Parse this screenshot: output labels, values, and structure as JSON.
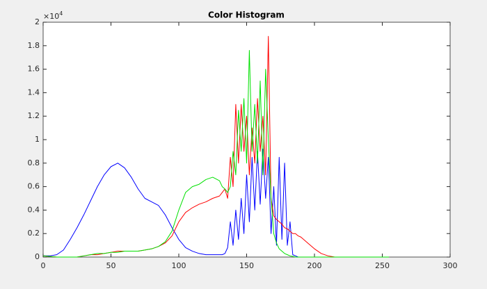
{
  "chart_data": {
    "type": "line",
    "title": "Color Histogram",
    "y_multiplier": {
      "base": "×10",
      "power": "4"
    },
    "x": [
      0,
      5,
      10,
      15,
      20,
      25,
      30,
      35,
      40,
      45,
      50,
      55,
      60,
      65,
      70,
      75,
      80,
      85,
      90,
      95,
      100,
      105,
      110,
      115,
      120,
      125,
      130,
      132,
      134,
      136,
      138,
      140,
      142,
      144,
      146,
      148,
      150,
      152,
      154,
      156,
      158,
      160,
      162,
      164,
      166,
      168,
      170,
      172,
      174,
      176,
      178,
      180,
      182,
      184,
      186,
      188,
      190,
      195,
      200,
      205,
      210,
      215,
      220,
      225,
      230,
      235,
      240,
      245,
      250,
      255
    ],
    "series": [
      {
        "color": "#0000ff",
        "values": [
          0.01,
          0.01,
          0.02,
          0.06,
          0.15,
          0.25,
          0.36,
          0.48,
          0.6,
          0.7,
          0.77,
          0.8,
          0.76,
          0.68,
          0.58,
          0.5,
          0.47,
          0.44,
          0.36,
          0.25,
          0.15,
          0.08,
          0.05,
          0.03,
          0.02,
          0.02,
          0.02,
          0.02,
          0.03,
          0.08,
          0.3,
          0.1,
          0.4,
          0.15,
          0.5,
          0.2,
          0.7,
          0.3,
          0.85,
          0.4,
          0.9,
          0.45,
          0.92,
          0.5,
          0.85,
          0.2,
          0.6,
          0.1,
          0.85,
          0.15,
          0.8,
          0.1,
          0.3,
          0.02,
          0.01,
          0,
          0,
          0,
          0,
          0,
          0,
          0,
          0,
          0,
          0,
          0,
          0,
          0,
          0,
          0
        ]
      },
      {
        "color": "#ff0000",
        "values": [
          0.01,
          0.005,
          0,
          0,
          0,
          0,
          0.01,
          0.02,
          0.02,
          0.03,
          0.04,
          0.05,
          0.05,
          0.05,
          0.05,
          0.06,
          0.07,
          0.09,
          0.12,
          0.18,
          0.3,
          0.38,
          0.42,
          0.45,
          0.47,
          0.5,
          0.52,
          0.55,
          0.58,
          0.5,
          0.85,
          0.6,
          1.3,
          0.8,
          1.3,
          0.9,
          1.2,
          0.7,
          1.1,
          0.8,
          1.35,
          0.9,
          1.2,
          0.7,
          1.88,
          0.5,
          0.35,
          0.32,
          0.3,
          0.28,
          0.25,
          0.24,
          0.22,
          0.2,
          0.2,
          0.18,
          0.17,
          0.12,
          0.07,
          0.03,
          0.01,
          0,
          0,
          0,
          0,
          0,
          0,
          0,
          0,
          0
        ]
      },
      {
        "color": "#00e000",
        "values": [
          0.01,
          0.005,
          0,
          0,
          0,
          0,
          0.01,
          0.02,
          0.03,
          0.03,
          0.04,
          0.04,
          0.05,
          0.05,
          0.05,
          0.06,
          0.07,
          0.09,
          0.13,
          0.22,
          0.4,
          0.55,
          0.6,
          0.62,
          0.66,
          0.68,
          0.65,
          0.6,
          0.58,
          0.55,
          0.6,
          0.9,
          0.7,
          1.25,
          0.9,
          1.35,
          0.8,
          1.76,
          0.9,
          1.3,
          0.8,
          1.5,
          0.7,
          1.6,
          1.0,
          0.5,
          0.2,
          0.12,
          0.07,
          0.05,
          0.03,
          0.02,
          0.01,
          0.005,
          0,
          0,
          0,
          0,
          0,
          0,
          0,
          0,
          0,
          0,
          0,
          0,
          0,
          0,
          0,
          0
        ]
      }
    ],
    "xlim": [
      0,
      300
    ],
    "xticks": [
      0,
      50,
      100,
      150,
      200,
      250,
      300
    ],
    "ylim": [
      0,
      2
    ],
    "yticks": [
      0,
      0.2,
      0.4,
      0.6,
      0.8,
      1,
      1.2,
      1.4,
      1.6,
      1.8,
      2
    ],
    "grid": false
  }
}
